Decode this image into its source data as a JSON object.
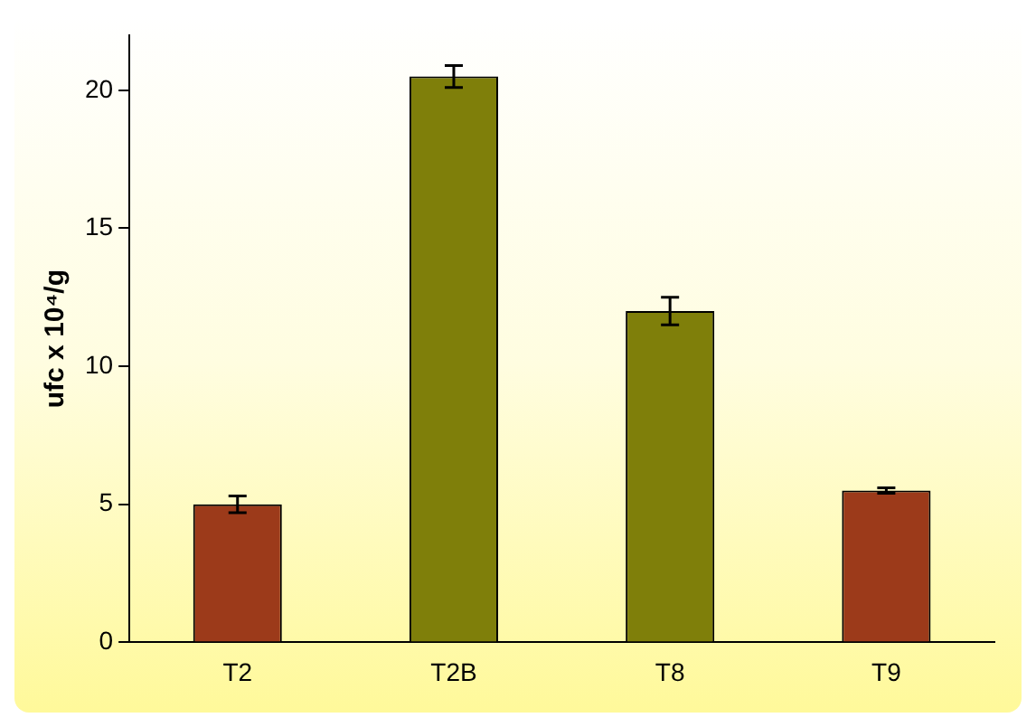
{
  "chart_data": {
    "type": "bar",
    "ylabel": "ufc x 10⁴/g",
    "categories": [
      "T2",
      "T2B",
      "T8",
      "T9"
    ],
    "values": [
      5.0,
      20.5,
      12.0,
      5.5
    ],
    "errors": [
      0.3,
      0.4,
      0.5,
      0.1
    ],
    "colors": [
      "#9c3a1a",
      "#7f7f0a",
      "#7f7f0a",
      "#9c3a1a"
    ],
    "ylim": [
      0,
      22
    ],
    "yticks": [
      0,
      5,
      10,
      15,
      20
    ],
    "grid": false,
    "legend": false
  }
}
